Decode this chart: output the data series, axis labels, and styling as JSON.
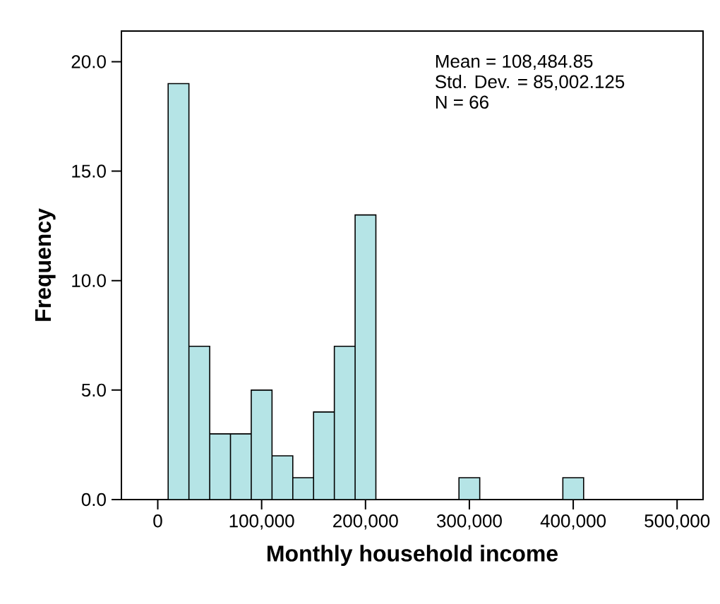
{
  "chart_data": {
    "type": "histogram",
    "xlabel": "Monthly household income",
    "ylabel": "Frequency",
    "bins": [
      10000,
      30000,
      50000,
      70000,
      90000,
      110000,
      130000,
      150000,
      170000,
      190000,
      210000,
      230000,
      250000,
      270000,
      290000,
      310000,
      330000,
      350000,
      370000,
      390000,
      410000
    ],
    "values": [
      19,
      7,
      3,
      3,
      5,
      2,
      1,
      4,
      7,
      13,
      0,
      0,
      0,
      0,
      1,
      0,
      0,
      0,
      0,
      1
    ],
    "color": "#b5e4e6",
    "xlim": [
      -35000,
      525000
    ],
    "xticks": [
      0,
      {
        "value": 100000,
        "label": "100,000"
      },
      {
        "value": 200000,
        "label": "200,000"
      },
      {
        "value": 300000,
        "label": "300,000"
      },
      {
        "value": 400000,
        "label": "400,000"
      },
      {
        "value": 500000,
        "label": "500,000"
      }
    ],
    "ylim": [
      0,
      21.4
    ],
    "yticks": [
      {
        "value": 0,
        "label": "0.0"
      },
      {
        "value": 5,
        "label": "5.0"
      },
      {
        "value": 10,
        "label": "10.0"
      },
      {
        "value": 15,
        "label": "15.0"
      },
      {
        "value": 20,
        "label": "20.0"
      }
    ],
    "annotations": [
      "Mean = 108,484.85",
      "Std. Dev. = 85,002.125",
      "N = 66"
    ]
  }
}
